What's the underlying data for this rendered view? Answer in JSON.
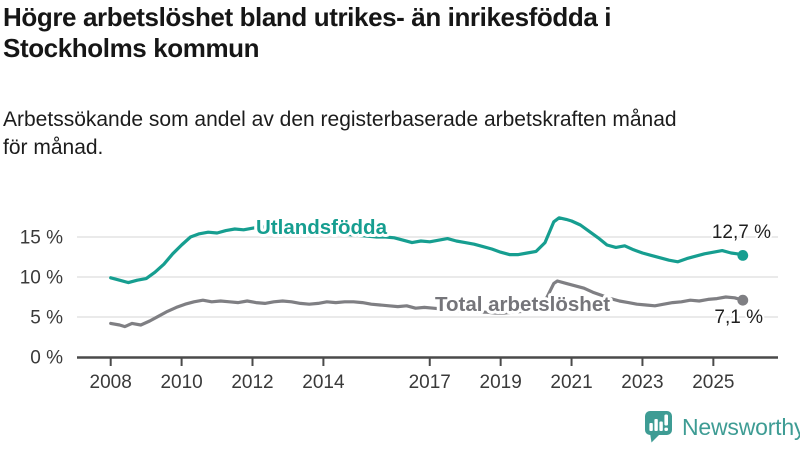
{
  "colors": {
    "brand_teal": "#3E9C94",
    "series_foreign_born": "#169E90",
    "series_total": "#7F7F83",
    "series_total_label": "#75757A",
    "end_label_text": "#1F1F1F",
    "grid": "#DEDEDE",
    "axis": "#4A4A4A"
  },
  "header": {
    "title_line1": "Högre arbetslöshet bland utrikes- än inrikesfödda i",
    "title_line2": "Stockholms kommun",
    "subtitle_line1": "Arbetssökande som andel av den registerbaserade arbetskraften månad",
    "subtitle_line2": "för månad."
  },
  "footer": {
    "logo_icon": "newsworthy-logo-icon",
    "logo_text": "Newsworthy"
  },
  "chart_data": {
    "type": "line",
    "title": "Högre arbetslöshet bland utrikes- än inrikesfödda i Stockholms kommun",
    "subtitle": "Arbetssökande som andel av den registerbaserade arbetskraften månad för månad.",
    "xlabel": "",
    "ylabel": "",
    "grid": "horizontal",
    "legend_position": "inline-line-labels",
    "xlim": [
      2007.1,
      2026.8
    ],
    "ylim": [
      0,
      18.5
    ],
    "x_ticks": [
      {
        "year": 2008,
        "label": "2008"
      },
      {
        "year": 2010,
        "label": "2010"
      },
      {
        "year": 2012,
        "label": "2012"
      },
      {
        "year": 2014,
        "label": "2014"
      },
      {
        "year": 2017,
        "label": "2017"
      },
      {
        "year": 2019,
        "label": "2019"
      },
      {
        "year": 2021,
        "label": "2021"
      },
      {
        "year": 2023,
        "label": "2023"
      },
      {
        "year": 2025,
        "label": "2025"
      }
    ],
    "y_ticks": [
      {
        "value": 0,
        "label": "0 %"
      },
      {
        "value": 5,
        "label": "5 %"
      },
      {
        "value": 10,
        "label": "10 %"
      },
      {
        "value": 15,
        "label": "15 %"
      }
    ],
    "series": [
      {
        "name": "Utlandsfödda",
        "color": "#169E90",
        "label_color": "#169E90",
        "end_label": "12,7 %",
        "end_value": 12.7,
        "points": [
          [
            2008.0,
            9.9
          ],
          [
            2008.25,
            9.6
          ],
          [
            2008.5,
            9.3
          ],
          [
            2008.75,
            9.6
          ],
          [
            2009.0,
            9.8
          ],
          [
            2009.25,
            10.6
          ],
          [
            2009.5,
            11.6
          ],
          [
            2009.75,
            12.9
          ],
          [
            2010.0,
            14.0
          ],
          [
            2010.25,
            15.0
          ],
          [
            2010.5,
            15.4
          ],
          [
            2010.75,
            15.6
          ],
          [
            2011.0,
            15.5
          ],
          [
            2011.25,
            15.8
          ],
          [
            2011.5,
            16.0
          ],
          [
            2011.75,
            15.9
          ],
          [
            2012.0,
            16.1
          ],
          [
            2012.25,
            16.3
          ],
          [
            2012.5,
            16.1
          ],
          [
            2012.75,
            16.2
          ],
          [
            2013.0,
            16.0
          ],
          [
            2013.25,
            15.9
          ],
          [
            2013.5,
            15.8
          ],
          [
            2013.75,
            15.7
          ],
          [
            2014.0,
            15.6
          ],
          [
            2014.25,
            15.5
          ],
          [
            2014.5,
            15.4
          ],
          [
            2014.75,
            15.3
          ],
          [
            2015.0,
            15.2
          ],
          [
            2015.25,
            15.1
          ],
          [
            2015.5,
            15.0
          ],
          [
            2015.75,
            15.0
          ],
          [
            2016.0,
            14.9
          ],
          [
            2016.25,
            14.6
          ],
          [
            2016.5,
            14.3
          ],
          [
            2016.75,
            14.5
          ],
          [
            2017.0,
            14.4
          ],
          [
            2017.25,
            14.6
          ],
          [
            2017.5,
            14.8
          ],
          [
            2017.75,
            14.5
          ],
          [
            2018.0,
            14.3
          ],
          [
            2018.25,
            14.1
          ],
          [
            2018.5,
            13.8
          ],
          [
            2018.75,
            13.5
          ],
          [
            2019.0,
            13.1
          ],
          [
            2019.25,
            12.8
          ],
          [
            2019.5,
            12.8
          ],
          [
            2019.75,
            13.0
          ],
          [
            2020.0,
            13.2
          ],
          [
            2020.25,
            14.3
          ],
          [
            2020.5,
            16.9
          ],
          [
            2020.65,
            17.4
          ],
          [
            2020.85,
            17.2
          ],
          [
            2021.0,
            17.0
          ],
          [
            2021.25,
            16.5
          ],
          [
            2021.5,
            15.7
          ],
          [
            2021.75,
            14.9
          ],
          [
            2022.0,
            14.0
          ],
          [
            2022.25,
            13.7
          ],
          [
            2022.5,
            13.9
          ],
          [
            2022.75,
            13.4
          ],
          [
            2023.0,
            13.0
          ],
          [
            2023.25,
            12.7
          ],
          [
            2023.5,
            12.4
          ],
          [
            2023.75,
            12.1
          ],
          [
            2024.0,
            11.9
          ],
          [
            2024.25,
            12.3
          ],
          [
            2024.5,
            12.6
          ],
          [
            2024.75,
            12.9
          ],
          [
            2025.0,
            13.1
          ],
          [
            2025.25,
            13.3
          ],
          [
            2025.5,
            13.0
          ],
          [
            2025.67,
            12.9
          ],
          [
            2025.83,
            12.7
          ]
        ]
      },
      {
        "name": "Total arbetslöshet",
        "color": "#7F7F83",
        "label_color": "#75757A",
        "end_label": "7,1 %",
        "end_value": 7.1,
        "points": [
          [
            2008.0,
            4.2
          ],
          [
            2008.25,
            4.0
          ],
          [
            2008.4,
            3.8
          ],
          [
            2008.6,
            4.2
          ],
          [
            2008.85,
            4.0
          ],
          [
            2009.1,
            4.5
          ],
          [
            2009.35,
            5.1
          ],
          [
            2009.6,
            5.7
          ],
          [
            2009.85,
            6.2
          ],
          [
            2010.1,
            6.6
          ],
          [
            2010.35,
            6.9
          ],
          [
            2010.6,
            7.1
          ],
          [
            2010.85,
            6.9
          ],
          [
            2011.1,
            7.0
          ],
          [
            2011.35,
            6.9
          ],
          [
            2011.6,
            6.8
          ],
          [
            2011.85,
            7.0
          ],
          [
            2012.1,
            6.8
          ],
          [
            2012.35,
            6.7
          ],
          [
            2012.6,
            6.9
          ],
          [
            2012.85,
            7.0
          ],
          [
            2013.1,
            6.9
          ],
          [
            2013.35,
            6.7
          ],
          [
            2013.6,
            6.6
          ],
          [
            2013.85,
            6.7
          ],
          [
            2014.1,
            6.9
          ],
          [
            2014.35,
            6.8
          ],
          [
            2014.6,
            6.9
          ],
          [
            2014.85,
            6.9
          ],
          [
            2015.1,
            6.8
          ],
          [
            2015.35,
            6.6
          ],
          [
            2015.6,
            6.5
          ],
          [
            2015.85,
            6.4
          ],
          [
            2016.1,
            6.3
          ],
          [
            2016.35,
            6.4
          ],
          [
            2016.6,
            6.1
          ],
          [
            2016.85,
            6.2
          ],
          [
            2017.1,
            6.1
          ],
          [
            2017.35,
            6.0
          ],
          [
            2017.6,
            5.9
          ],
          [
            2017.85,
            5.8
          ],
          [
            2018.1,
            5.7
          ],
          [
            2018.35,
            5.6
          ],
          [
            2018.6,
            5.6
          ],
          [
            2018.85,
            5.5
          ],
          [
            2019.1,
            5.5
          ],
          [
            2019.35,
            5.6
          ],
          [
            2019.6,
            5.7
          ],
          [
            2019.85,
            5.8
          ],
          [
            2020.1,
            6.1
          ],
          [
            2020.3,
            7.4
          ],
          [
            2020.5,
            9.2
          ],
          [
            2020.6,
            9.5
          ],
          [
            2020.85,
            9.2
          ],
          [
            2021.1,
            8.9
          ],
          [
            2021.35,
            8.6
          ],
          [
            2021.6,
            8.1
          ],
          [
            2021.85,
            7.7
          ],
          [
            2022.1,
            7.3
          ],
          [
            2022.35,
            7.0
          ],
          [
            2022.6,
            6.8
          ],
          [
            2022.85,
            6.6
          ],
          [
            2023.1,
            6.5
          ],
          [
            2023.35,
            6.4
          ],
          [
            2023.6,
            6.6
          ],
          [
            2023.85,
            6.8
          ],
          [
            2024.1,
            6.9
          ],
          [
            2024.35,
            7.1
          ],
          [
            2024.6,
            7.0
          ],
          [
            2024.85,
            7.2
          ],
          [
            2025.1,
            7.3
          ],
          [
            2025.35,
            7.5
          ],
          [
            2025.6,
            7.4
          ],
          [
            2025.83,
            7.1
          ]
        ]
      }
    ]
  }
}
